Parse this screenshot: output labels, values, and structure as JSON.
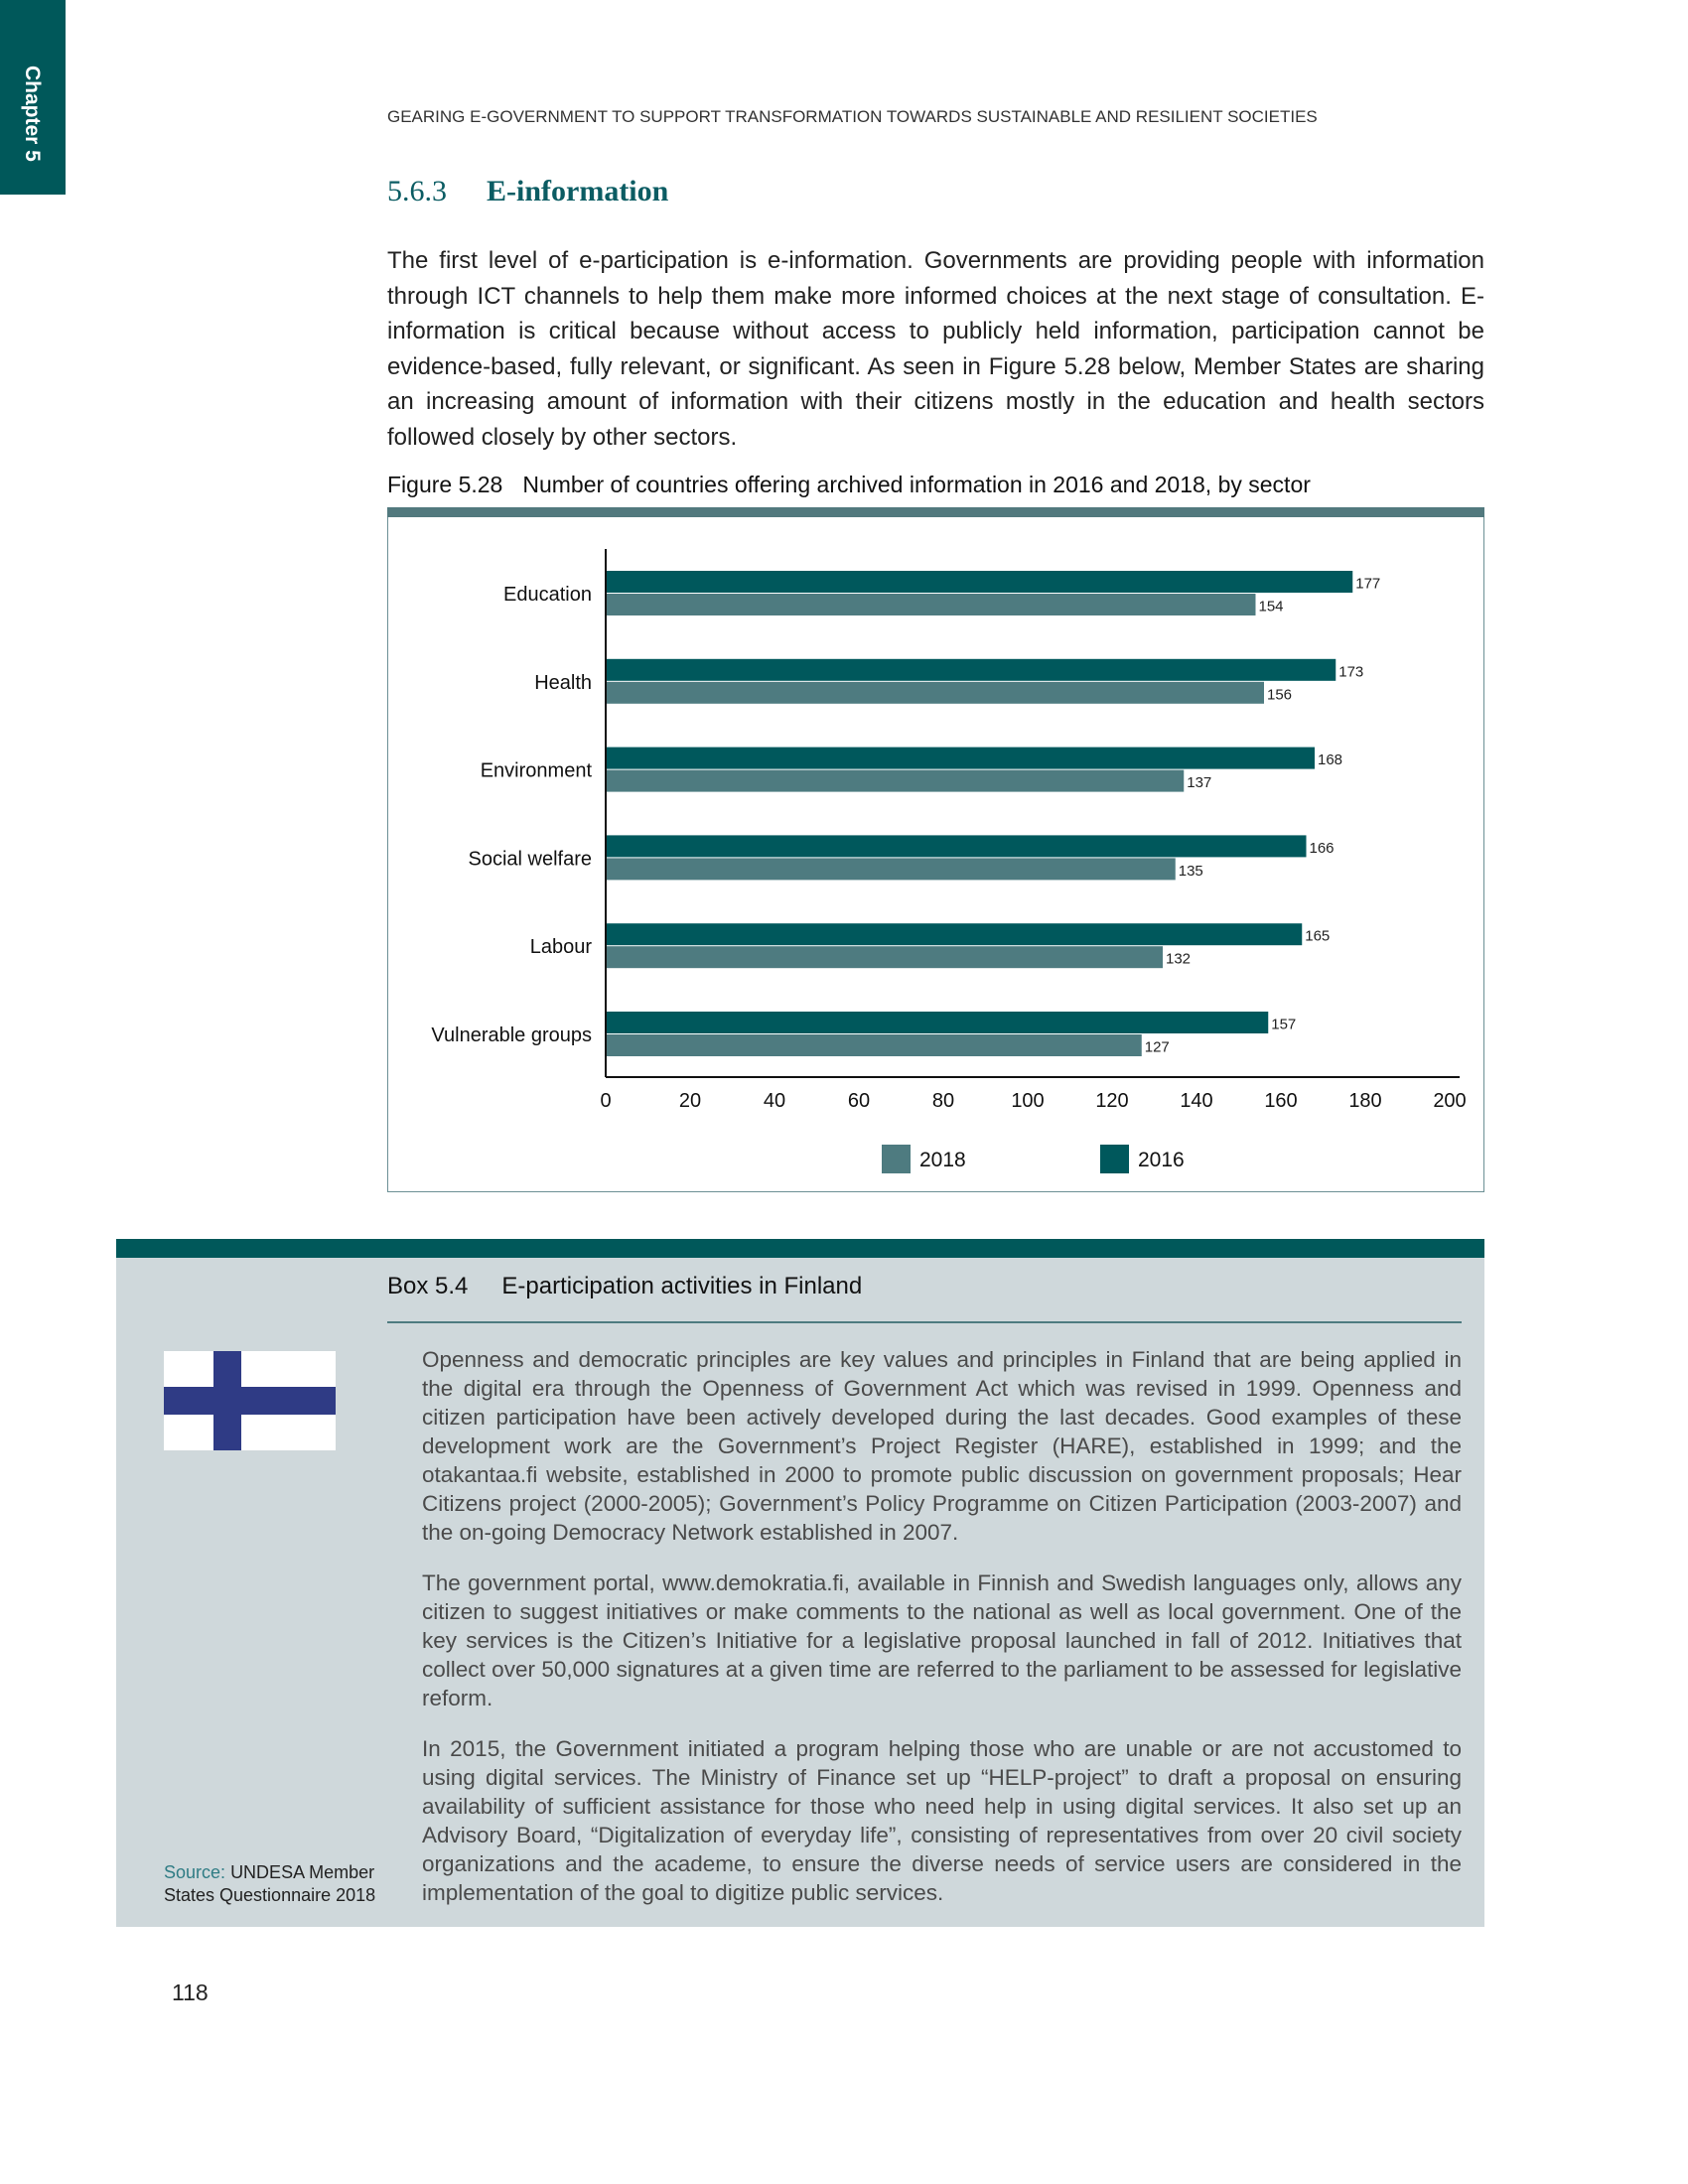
{
  "chapter_tab": "Chapter 5",
  "running_head": "GEARING E-GOVERNMENT TO SUPPORT TRANSFORMATION TOWARDS SUSTAINABLE AND RESILIENT SOCIETIES",
  "section": {
    "number": "5.6.3",
    "title": "E-information"
  },
  "intro": "The first level of e-participation is e-information. Governments are providing people with information through ICT channels to help them make more informed choices at the next stage of consultation. E-information is critical because without access to publicly held information, participation cannot be evidence-based, fully relevant, or significant. As seen in Figure 5.28 below, Member States are sharing an increasing amount of information with their citizens mostly in the education and health sectors followed closely by other sectors.",
  "figure": {
    "number": "Figure 5.28",
    "caption": "Number of countries offering archived information in 2016 and 2018, by sector"
  },
  "chart_data": {
    "type": "bar",
    "orientation": "horizontal",
    "categories": [
      "Education",
      "Health",
      "Environment",
      "Social welfare",
      "Labour",
      "Vulnerable groups"
    ],
    "series": [
      {
        "name": "2016",
        "values": [
          177,
          173,
          168,
          166,
          165,
          157
        ],
        "color": "#00585c"
      },
      {
        "name": "2018",
        "values": [
          154,
          156,
          137,
          135,
          132,
          127
        ],
        "color": "#4e7b80"
      }
    ],
    "xlim": [
      0,
      200
    ],
    "xticks": [
      0,
      20,
      40,
      60,
      80,
      100,
      120,
      140,
      160,
      180,
      200
    ],
    "data_labels": true,
    "grid": false,
    "legend": {
      "placement": "bottom",
      "order": [
        "2018",
        "2016"
      ]
    }
  },
  "box": {
    "number": "Box 5.4",
    "title": "E-participation activities in Finland",
    "flag_icon": "finland-flag",
    "paragraphs": [
      "Openness and democratic principles are key values and principles in Finland that are being applied in the digital era through the Openness of Government Act which was revised in 1999. Openness and citizen participation have been actively developed during the last decades. Good examples of these development work are the Government’s Project Register (HARE), established in 1999; and the otakantaa.fi website, established in 2000 to promote public discussion on government proposals; Hear Citizens project (2000-2005); Government’s Policy Programme on Citizen Participation (2003-2007) and the on-going Democracy Network established in 2007.",
      "The government portal, www.demokratia.fi, available in Finnish and Swedish languages only, allows any citizen to suggest initiatives or make comments to the national as well as local government. One of the key services is the Citizen’s Initiative for a legislative proposal launched in fall of 2012. Initiatives that collect over 50,000 signatures at a given time are referred to the parliament to be assessed for legislative reform.",
      "In 2015, the Government initiated a program helping those who are unable or are not accustomed to using digital services. The Ministry of Finance set up “HELP-project” to draft a proposal on ensuring availability of sufficient assistance for those who need help in using digital services. It also set up an Advisory Board, “Digitalization of everyday life”, consisting of representatives from over 20 civil society organizations and the academe, to ensure the diverse needs of service users are considered in the implementation of the goal to digitize public services."
    ],
    "source_label": "Source:",
    "source_text": "UNDESA Member States Questionnaire 2018"
  },
  "page_number": "118"
}
